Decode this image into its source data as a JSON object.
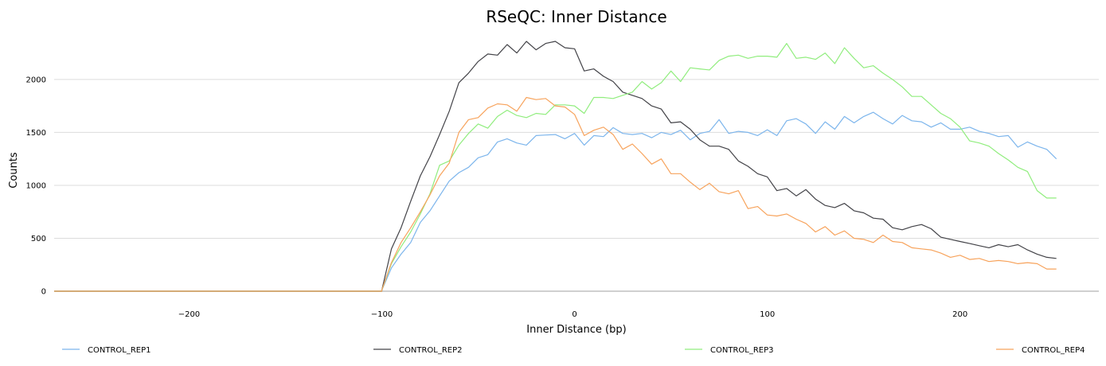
{
  "chart_data": {
    "type": "line",
    "title": "RSeQC: Inner Distance",
    "xlabel": "Inner Distance (bp)",
    "ylabel": "Counts",
    "xlim": [
      -270,
      272
    ],
    "ylim": [
      0,
      2450
    ],
    "x_ticks": [
      -200,
      -100,
      0,
      100,
      200
    ],
    "x_tick_labels": [
      "−200",
      "−100",
      "0",
      "100",
      "200"
    ],
    "y_ticks": [
      0,
      500,
      1000,
      1500,
      2000
    ],
    "y_tick_labels": [
      "0",
      "500",
      "1000",
      "1500",
      "2000"
    ],
    "grid": true,
    "legend_position": "bottom",
    "x": [
      -100,
      -95,
      -90,
      -85,
      -80,
      -75,
      -70,
      -65,
      -60,
      -55,
      -50,
      -45,
      -40,
      -35,
      -30,
      -25,
      -20,
      -15,
      -10,
      -5,
      0,
      5,
      10,
      15,
      20,
      25,
      30,
      35,
      40,
      45,
      50,
      55,
      60,
      65,
      70,
      75,
      80,
      85,
      90,
      95,
      100,
      105,
      110,
      115,
      120,
      125,
      130,
      135,
      140,
      145,
      150,
      155,
      160,
      165,
      170,
      175,
      180,
      185,
      190,
      195,
      200,
      205,
      210,
      215,
      220,
      225,
      230,
      235,
      240,
      245,
      250
    ],
    "series": [
      {
        "name": "CONTROL_REP1",
        "color": "#7cb5ec",
        "values": [
          10,
          220,
          350,
          460,
          650,
          760,
          900,
          1040,
          1120,
          1170,
          1260,
          1290,
          1410,
          1440,
          1400,
          1380,
          1470,
          1475,
          1480,
          1440,
          1490,
          1380,
          1470,
          1460,
          1545,
          1490,
          1480,
          1490,
          1450,
          1500,
          1480,
          1520,
          1430,
          1490,
          1510,
          1620,
          1490,
          1510,
          1500,
          1470,
          1525,
          1470,
          1610,
          1630,
          1580,
          1490,
          1600,
          1530,
          1650,
          1590,
          1650,
          1690,
          1630,
          1580,
          1660,
          1610,
          1600,
          1550,
          1590,
          1530,
          1530,
          1550,
          1510,
          1490,
          1460,
          1470,
          1360,
          1410,
          1370,
          1340,
          1250
        ]
      },
      {
        "name": "CONTROL_REP2",
        "color": "#434348",
        "values": [
          10,
          400,
          600,
          850,
          1090,
          1270,
          1480,
          1700,
          1970,
          2060,
          2170,
          2240,
          2230,
          2330,
          2250,
          2360,
          2280,
          2340,
          2360,
          2300,
          2290,
          2080,
          2100,
          2030,
          1980,
          1880,
          1850,
          1820,
          1750,
          1720,
          1590,
          1600,
          1530,
          1430,
          1370,
          1370,
          1340,
          1230,
          1180,
          1110,
          1080,
          950,
          970,
          900,
          960,
          870,
          810,
          790,
          830,
          760,
          740,
          690,
          680,
          600,
          580,
          610,
          630,
          590,
          510,
          490,
          470,
          450,
          430,
          410,
          440,
          420,
          440,
          390,
          350,
          320,
          310
        ]
      },
      {
        "name": "CONTROL_REP3",
        "color": "#90ed7d",
        "values": [
          10,
          260,
          420,
          560,
          730,
          920,
          1190,
          1230,
          1380,
          1490,
          1580,
          1540,
          1650,
          1710,
          1660,
          1640,
          1680,
          1670,
          1760,
          1760,
          1750,
          1680,
          1830,
          1830,
          1820,
          1850,
          1880,
          1980,
          1910,
          1970,
          2080,
          1980,
          2110,
          2100,
          2090,
          2180,
          2220,
          2230,
          2200,
          2220,
          2220,
          2210,
          2340,
          2200,
          2210,
          2190,
          2250,
          2150,
          2300,
          2200,
          2110,
          2130,
          2060,
          2000,
          1930,
          1840,
          1840,
          1760,
          1680,
          1630,
          1550,
          1420,
          1400,
          1370,
          1300,
          1240,
          1170,
          1130,
          950,
          880,
          880
        ]
      },
      {
        "name": "CONTROL_REP4",
        "color": "#f7a35c",
        "values": [
          10,
          270,
          460,
          600,
          750,
          910,
          1090,
          1210,
          1500,
          1620,
          1640,
          1730,
          1770,
          1760,
          1700,
          1830,
          1810,
          1820,
          1750,
          1740,
          1670,
          1470,
          1520,
          1550,
          1480,
          1340,
          1390,
          1300,
          1200,
          1250,
          1110,
          1110,
          1030,
          960,
          1020,
          940,
          920,
          950,
          780,
          800,
          720,
          710,
          730,
          680,
          640,
          560,
          610,
          530,
          570,
          500,
          490,
          460,
          530,
          470,
          460,
          410,
          400,
          390,
          360,
          320,
          340,
          300,
          310,
          280,
          290,
          280,
          260,
          270,
          260,
          210,
          210
        ]
      }
    ]
  }
}
